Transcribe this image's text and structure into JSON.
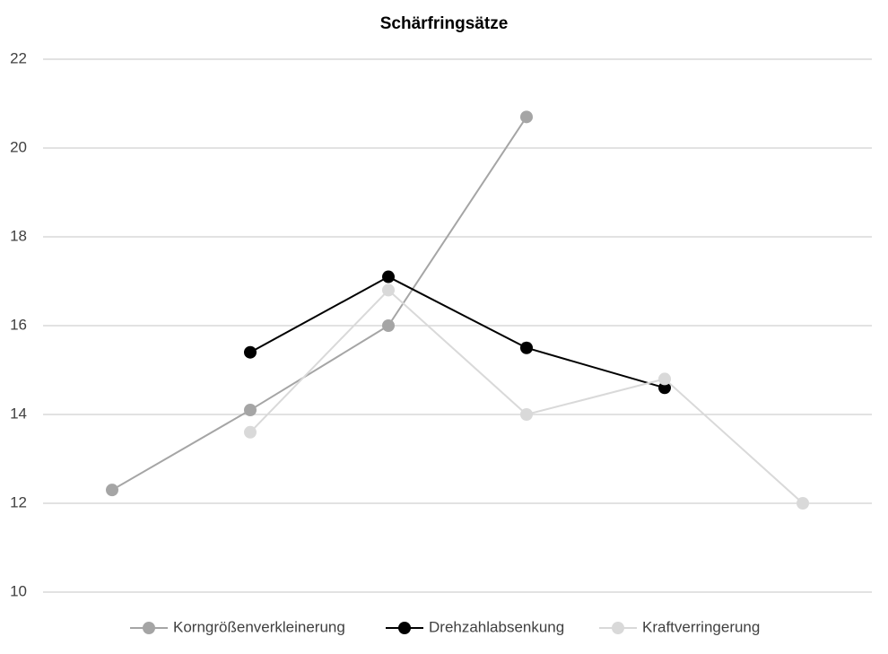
{
  "chart_data": {
    "type": "line",
    "title": "Schärfringsätze",
    "categories": [
      null,
      null,
      null,
      null,
      null,
      null
    ],
    "series": [
      {
        "name": "Korngrößenverkleinerung",
        "color": "#a5a5a5",
        "values": [
          12.3,
          14.1,
          16.0,
          20.7,
          null,
          null
        ]
      },
      {
        "name": "Drehzahlabsenkung",
        "color": "#000000",
        "values": [
          null,
          15.4,
          17.1,
          15.5,
          14.6,
          null
        ]
      },
      {
        "name": "Kraftverringerung",
        "color": "#d9d9d9",
        "values": [
          null,
          13.6,
          16.8,
          14.0,
          14.8,
          12.0
        ]
      }
    ],
    "ylim": [
      10,
      22
    ],
    "yticks": [
      10,
      12,
      14,
      16,
      18,
      20,
      22
    ],
    "grid": true,
    "legend": "bottom"
  }
}
